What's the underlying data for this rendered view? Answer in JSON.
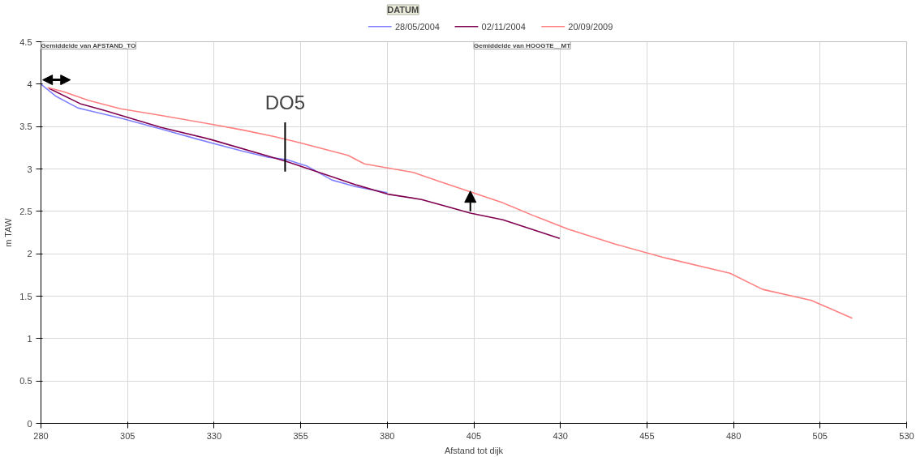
{
  "chart_data": {
    "type": "line",
    "xlabel": "Afstand tot dijk",
    "ylabel": "m TAW",
    "legend_title": "DATUM",
    "annotations": [
      "Gemiddelde van AFSTAND_TO",
      "Gemiddelde van HOOGTE__MT",
      {
        "text": "DO5",
        "x": 350.5,
        "y": 3.1
      }
    ],
    "xlim": [
      280,
      530
    ],
    "xticks": [
      280,
      305,
      330,
      355,
      380,
      405,
      430,
      455,
      480,
      505,
      530
    ],
    "ylim": [
      0,
      4.5
    ],
    "yticks": [
      0,
      0.5,
      1,
      1.5,
      2,
      2.5,
      3,
      3.5,
      4,
      4.5
    ],
    "grid": true,
    "legend": "top",
    "line_style": "solid",
    "marker": "none",
    "series": [
      {
        "name": "28/05/2004",
        "color": "#8080ff",
        "x": [
          280,
          284.2,
          290.6,
          293.6,
          303,
          314.7,
          325.3,
          338.2,
          345.3,
          351,
          357,
          364,
          371,
          380
        ],
        "values": [
          4.0,
          3.86,
          3.72,
          3.69,
          3.6,
          3.47,
          3.35,
          3.21,
          3.14,
          3.11,
          3.03,
          2.87,
          2.79,
          2.72
        ]
      },
      {
        "name": "02/11/2004",
        "color": "#800050",
        "x": [
          282.3,
          291.3,
          298.3,
          314.7,
          328.8,
          350.7,
          361.7,
          371.2,
          380.5,
          389.9,
          404,
          413.4,
          429.8
        ],
        "values": [
          3.95,
          3.77,
          3.69,
          3.49,
          3.35,
          3.09,
          2.94,
          2.81,
          2.7,
          2.64,
          2.48,
          2.4,
          2.18
        ]
      },
      {
        "name": "20/09/2009",
        "color": "#ff8080",
        "x": [
          281.9,
          286.6,
          293.6,
          303,
          314.7,
          328.8,
          338.2,
          347.6,
          354.6,
          368.7,
          373.4,
          387.5,
          394.6,
          404,
          413.4,
          422.8,
          432.2,
          446.2,
          460.4,
          479,
          488.4,
          502.5,
          514.3
        ],
        "values": [
          3.96,
          3.91,
          3.81,
          3.71,
          3.63,
          3.53,
          3.46,
          3.38,
          3.31,
          3.16,
          3.06,
          2.96,
          2.86,
          2.73,
          2.6,
          2.44,
          2.29,
          2.11,
          1.95,
          1.77,
          1.58,
          1.45,
          1.24
        ]
      }
    ]
  }
}
